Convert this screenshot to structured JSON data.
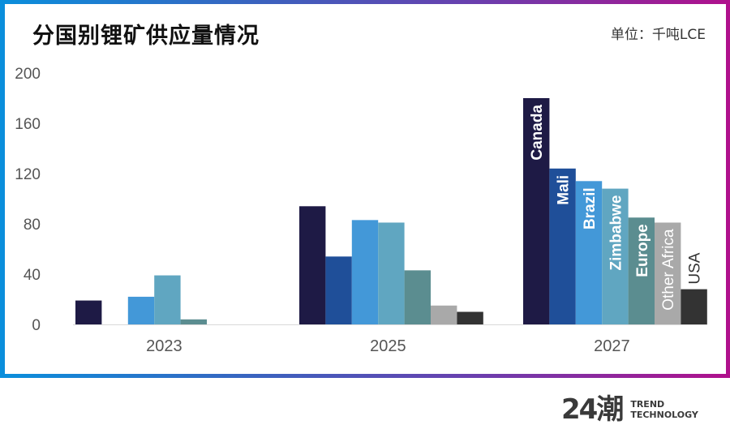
{
  "header": {
    "title": "分国别锂矿供应量情况",
    "unit": "单位：千吨LCE"
  },
  "footer": {
    "logo_mark": "24潮",
    "logo_line1": "TREND",
    "logo_line2": "TECHNOLOGY"
  },
  "colors": {
    "Canada": "#1e1a45",
    "Mali": "#1f4f99",
    "Brazil": "#4398d8",
    "Zimbabwe": "#60a6c1",
    "Europe": "#5b8d90",
    "Other Africa": "#a9a9a9",
    "USA": "#333333"
  },
  "chart_data": {
    "type": "bar",
    "title": "分国别锂矿供应量情况",
    "unit": "千吨LCE",
    "xlabel": "",
    "ylabel": "",
    "ylim": [
      0,
      200
    ],
    "yticks": [
      0,
      40,
      80,
      120,
      160,
      200
    ],
    "grid": false,
    "legend": "inside bars (2027 group labels)",
    "categories": [
      "2023",
      "2025",
      "2027"
    ],
    "series": [
      {
        "name": "Canada",
        "values": [
          19,
          94,
          180
        ]
      },
      {
        "name": "Mali",
        "values": [
          0,
          54,
          124
        ]
      },
      {
        "name": "Brazil",
        "values": [
          22,
          83,
          114
        ]
      },
      {
        "name": "Zimbabwe",
        "values": [
          39,
          81,
          108
        ]
      },
      {
        "name": "Europe",
        "values": [
          4,
          43,
          85
        ]
      },
      {
        "name": "Other Africa",
        "values": [
          0,
          15,
          81
        ]
      },
      {
        "name": "USA",
        "values": [
          0,
          10,
          28
        ]
      }
    ]
  }
}
